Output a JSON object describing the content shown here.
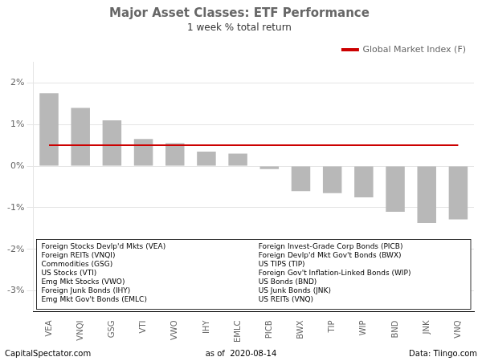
{
  "chart_data": {
    "type": "bar",
    "title": "Major Asset Classes: ETF Performance",
    "subtitle": "1 week % total return",
    "categories": [
      "VEA",
      "VNQI",
      "GSG",
      "VTI",
      "VWO",
      "IHY",
      "EMLC",
      "PICB",
      "BWX",
      "TIP",
      "WIP",
      "BND",
      "JNK",
      "VNQ"
    ],
    "series": [
      {
        "type": "bar",
        "color": "#b8b8b8",
        "values": [
          1.75,
          1.4,
          1.1,
          0.65,
          0.55,
          0.35,
          0.3,
          -0.07,
          -0.6,
          -0.65,
          -0.75,
          -1.1,
          -1.37,
          -1.28
        ]
      },
      {
        "name": "Global Market Index (F)",
        "type": "line",
        "color": "#cc0000",
        "values": [
          0.5,
          0.5,
          0.5,
          0.5,
          0.5,
          0.5,
          0.5,
          0.5,
          0.5,
          0.5,
          0.5,
          0.5,
          0.5,
          0.5
        ]
      }
    ],
    "ylim": [
      -3.5,
      2.5
    ],
    "yticks": [
      {
        "value": -3.0,
        "label": "-3%"
      },
      {
        "value": -2.0,
        "label": "-2%"
      },
      {
        "value": -1.0,
        "label": "-1%"
      },
      {
        "value": 0.0,
        "label": "0%"
      },
      {
        "value": 1.0,
        "label": "1%"
      },
      {
        "value": 2.0,
        "label": "2%"
      }
    ],
    "grid": true,
    "legend": "upper right",
    "annotations": {
      "box": [
        [
          "Foreign Stocks Devlp'd Mkts (VEA)",
          "Foreign REITs (VNQI)",
          "Commodities (GSG)",
          "US Stocks (VTI)",
          "Emg Mkt Stocks (VWO)",
          "Foreign Junk Bonds (IHY)",
          "Emg Mkt Gov't Bonds (EMLC)"
        ],
        [
          "Foreign Invest-Grade Corp Bonds (PICB)",
          "Foreign Devlp'd Mkt Gov't Bonds (BWX)",
          "US TIPS (TIP)",
          "Foreign Gov't Inflation-Linked Bonds (WIP)",
          "US Bonds (BND)",
          "US Junk Bonds (JNK)",
          "US REITs (VNQ)"
        ]
      ],
      "footer": [
        "CapitalSpectator.com",
        "as of  2020-08-14",
        "Data: Tiingo.com"
      ]
    }
  }
}
